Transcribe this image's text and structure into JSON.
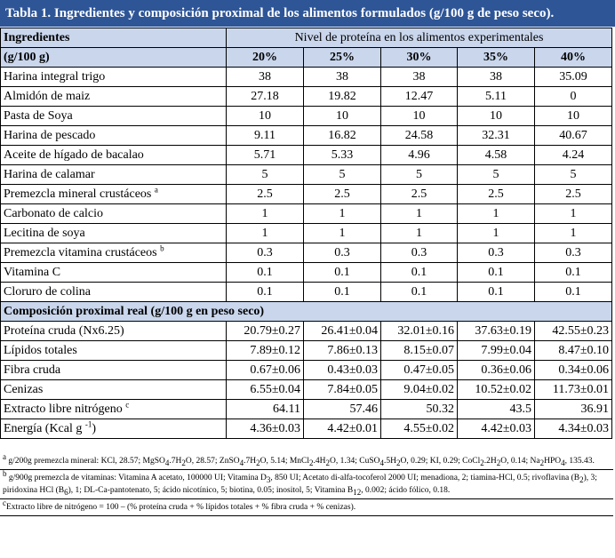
{
  "title": "Tabla 1. Ingredientes y composición proximal de los alimentos formulados (g/100 g de peso seco).",
  "header": {
    "col1_line1": "Ingredientes",
    "col1_line2": "(g/100 g)",
    "group_label": "Nivel de proteína en los alimentos experimentales",
    "levels": [
      "20%",
      "25%",
      "30%",
      "35%",
      "40%"
    ]
  },
  "ingredients": [
    {
      "name": "Harina integral trigo",
      "sup": "",
      "values": [
        "38",
        "38",
        "38",
        "38",
        "35.09"
      ]
    },
    {
      "name": "Almidón de maiz",
      "sup": "",
      "values": [
        "27.18",
        "19.82",
        "12.47",
        "5.11",
        "0"
      ]
    },
    {
      "name": "Pasta de Soya",
      "sup": "",
      "values": [
        "10",
        "10",
        "10",
        "10",
        "10"
      ]
    },
    {
      "name": "Harina de pescado",
      "sup": "",
      "values": [
        "9.11",
        "16.82",
        "24.58",
        "32.31",
        "40.67"
      ]
    },
    {
      "name": "Aceite de hígado de bacalao",
      "sup": "",
      "values": [
        "5.71",
        "5.33",
        "4.96",
        "4.58",
        "4.24"
      ]
    },
    {
      "name": "Harina de calamar",
      "sup": "",
      "values": [
        "5",
        "5",
        "5",
        "5",
        "5"
      ]
    },
    {
      "name": "Premezcla mineral crustáceos",
      "sup": "a",
      "values": [
        "2.5",
        "2.5",
        "2.5",
        "2.5",
        "2.5"
      ]
    },
    {
      "name": "Carbonato de calcio",
      "sup": "",
      "values": [
        "1",
        "1",
        "1",
        "1",
        "1"
      ]
    },
    {
      "name": "Lecitina de soya",
      "sup": "",
      "values": [
        "1",
        "1",
        "1",
        "1",
        "1"
      ]
    },
    {
      "name": "Premezcla vitamina crustáceos",
      "sup": "b",
      "values": [
        "0.3",
        "0.3",
        "0.3",
        "0.3",
        "0.3"
      ]
    },
    {
      "name": "Vitamina C",
      "sup": "",
      "values": [
        "0.1",
        "0.1",
        "0.1",
        "0.1",
        "0.1"
      ]
    },
    {
      "name": "Cloruro de colina",
      "sup": "",
      "values": [
        "0.1",
        "0.1",
        "0.1",
        "0.1",
        "0.1"
      ]
    }
  ],
  "section_label": "Composición proximal real (g/100 g en peso seco)",
  "composition": [
    {
      "name": "Proteína cruda (Nx6.25)",
      "sup": "",
      "values": [
        "20.79±0.27",
        "26.41±0.04",
        "32.01±0.16",
        "37.63±0.19",
        "42.55±0.23"
      ]
    },
    {
      "name": "Lípidos totales",
      "sup": "",
      "values": [
        "7.89±0.12",
        "7.86±0.13",
        "8.15±0.07",
        "7.99±0.04",
        "8.47±0.10"
      ]
    },
    {
      "name": "Fibra cruda",
      "sup": "",
      "values": [
        "0.67±0.06",
        "0.43±0.03",
        "0.47±0.05",
        "0.36±0.06",
        "0.34±0.06"
      ]
    },
    {
      "name": "Cenizas",
      "sup": "",
      "values": [
        "6.55±0.04",
        "7.84±0.05",
        "9.04±0.02",
        "10.52±0.02",
        "11.73±0.01"
      ]
    },
    {
      "name": "Extracto libre nitrógeno",
      "sup": "c",
      "values": [
        "64.11",
        "57.46",
        "50.32",
        "43.5",
        "36.91"
      ]
    },
    {
      "name": "Energía (Kcal g",
      "sup": "-1",
      "suffix": ")",
      "values": [
        "4.36±0.03",
        "4.42±0.01",
        "4.55±0.02",
        "4.42±0.03",
        "4.34±0.03"
      ]
    }
  ],
  "notes": {
    "a": {
      "mark": "a",
      "parts": [
        {
          "t": " g/200g premezcla mineral: KCl, 28.57; MgSO"
        },
        {
          "sub": "4"
        },
        {
          "t": ".7H"
        },
        {
          "sub": "2"
        },
        {
          "t": "O, 28.57;  ZnSO"
        },
        {
          "sub": "4"
        },
        {
          "t": ".7H"
        },
        {
          "sub": "2"
        },
        {
          "t": "O, 5.14; MnCl"
        },
        {
          "sub": "2"
        },
        {
          "t": ".4H"
        },
        {
          "sub": "2"
        },
        {
          "t": "O, 1.34; CuSO"
        },
        {
          "sub": "4"
        },
        {
          "t": ".5H"
        },
        {
          "sub": "2"
        },
        {
          "t": "O, 0.29; KI, 0.29; CoCl"
        },
        {
          "sub": "2"
        },
        {
          "t": ".2H"
        },
        {
          "sub": "2"
        },
        {
          "t": "O, 0.14; Na"
        },
        {
          "sub": "2"
        },
        {
          "t": "HPO"
        },
        {
          "sub": "4"
        },
        {
          "t": ", 135.43."
        }
      ]
    },
    "b": {
      "mark": "b",
      "parts": [
        {
          "t": " g/900g premezcla de vitaminas: Vitamina A acetato, 100000 UI; Vitamina D"
        },
        {
          "sub": "3"
        },
        {
          "t": ", 850 UI; Acetato di-alfa-tocoferol 2000 UI; menadiona, 2; tiamina-HCl, 0.5; rivoflavina (B"
        },
        {
          "sub": "2"
        },
        {
          "t": "), 3; piridoxina HCl (B"
        },
        {
          "sub": "6"
        },
        {
          "t": "), 1; DL-Ca-pantotenato, 5; ácido nicotínico, 5; biotina, 0.05; inositol, 5; Vitamina B"
        },
        {
          "sub": "12"
        },
        {
          "t": ", 0.002; ácido fólico, 0.18."
        }
      ]
    },
    "c": {
      "mark": "c",
      "parts": [
        {
          "t": "Extracto libre de nitrógeno = 100 – (% proteína cruda + % lípidos totales + % fibra cruda + % cenizas)."
        }
      ]
    }
  },
  "colors": {
    "title_bg": "#2e5596",
    "header_bg": "#c9d6ec"
  }
}
